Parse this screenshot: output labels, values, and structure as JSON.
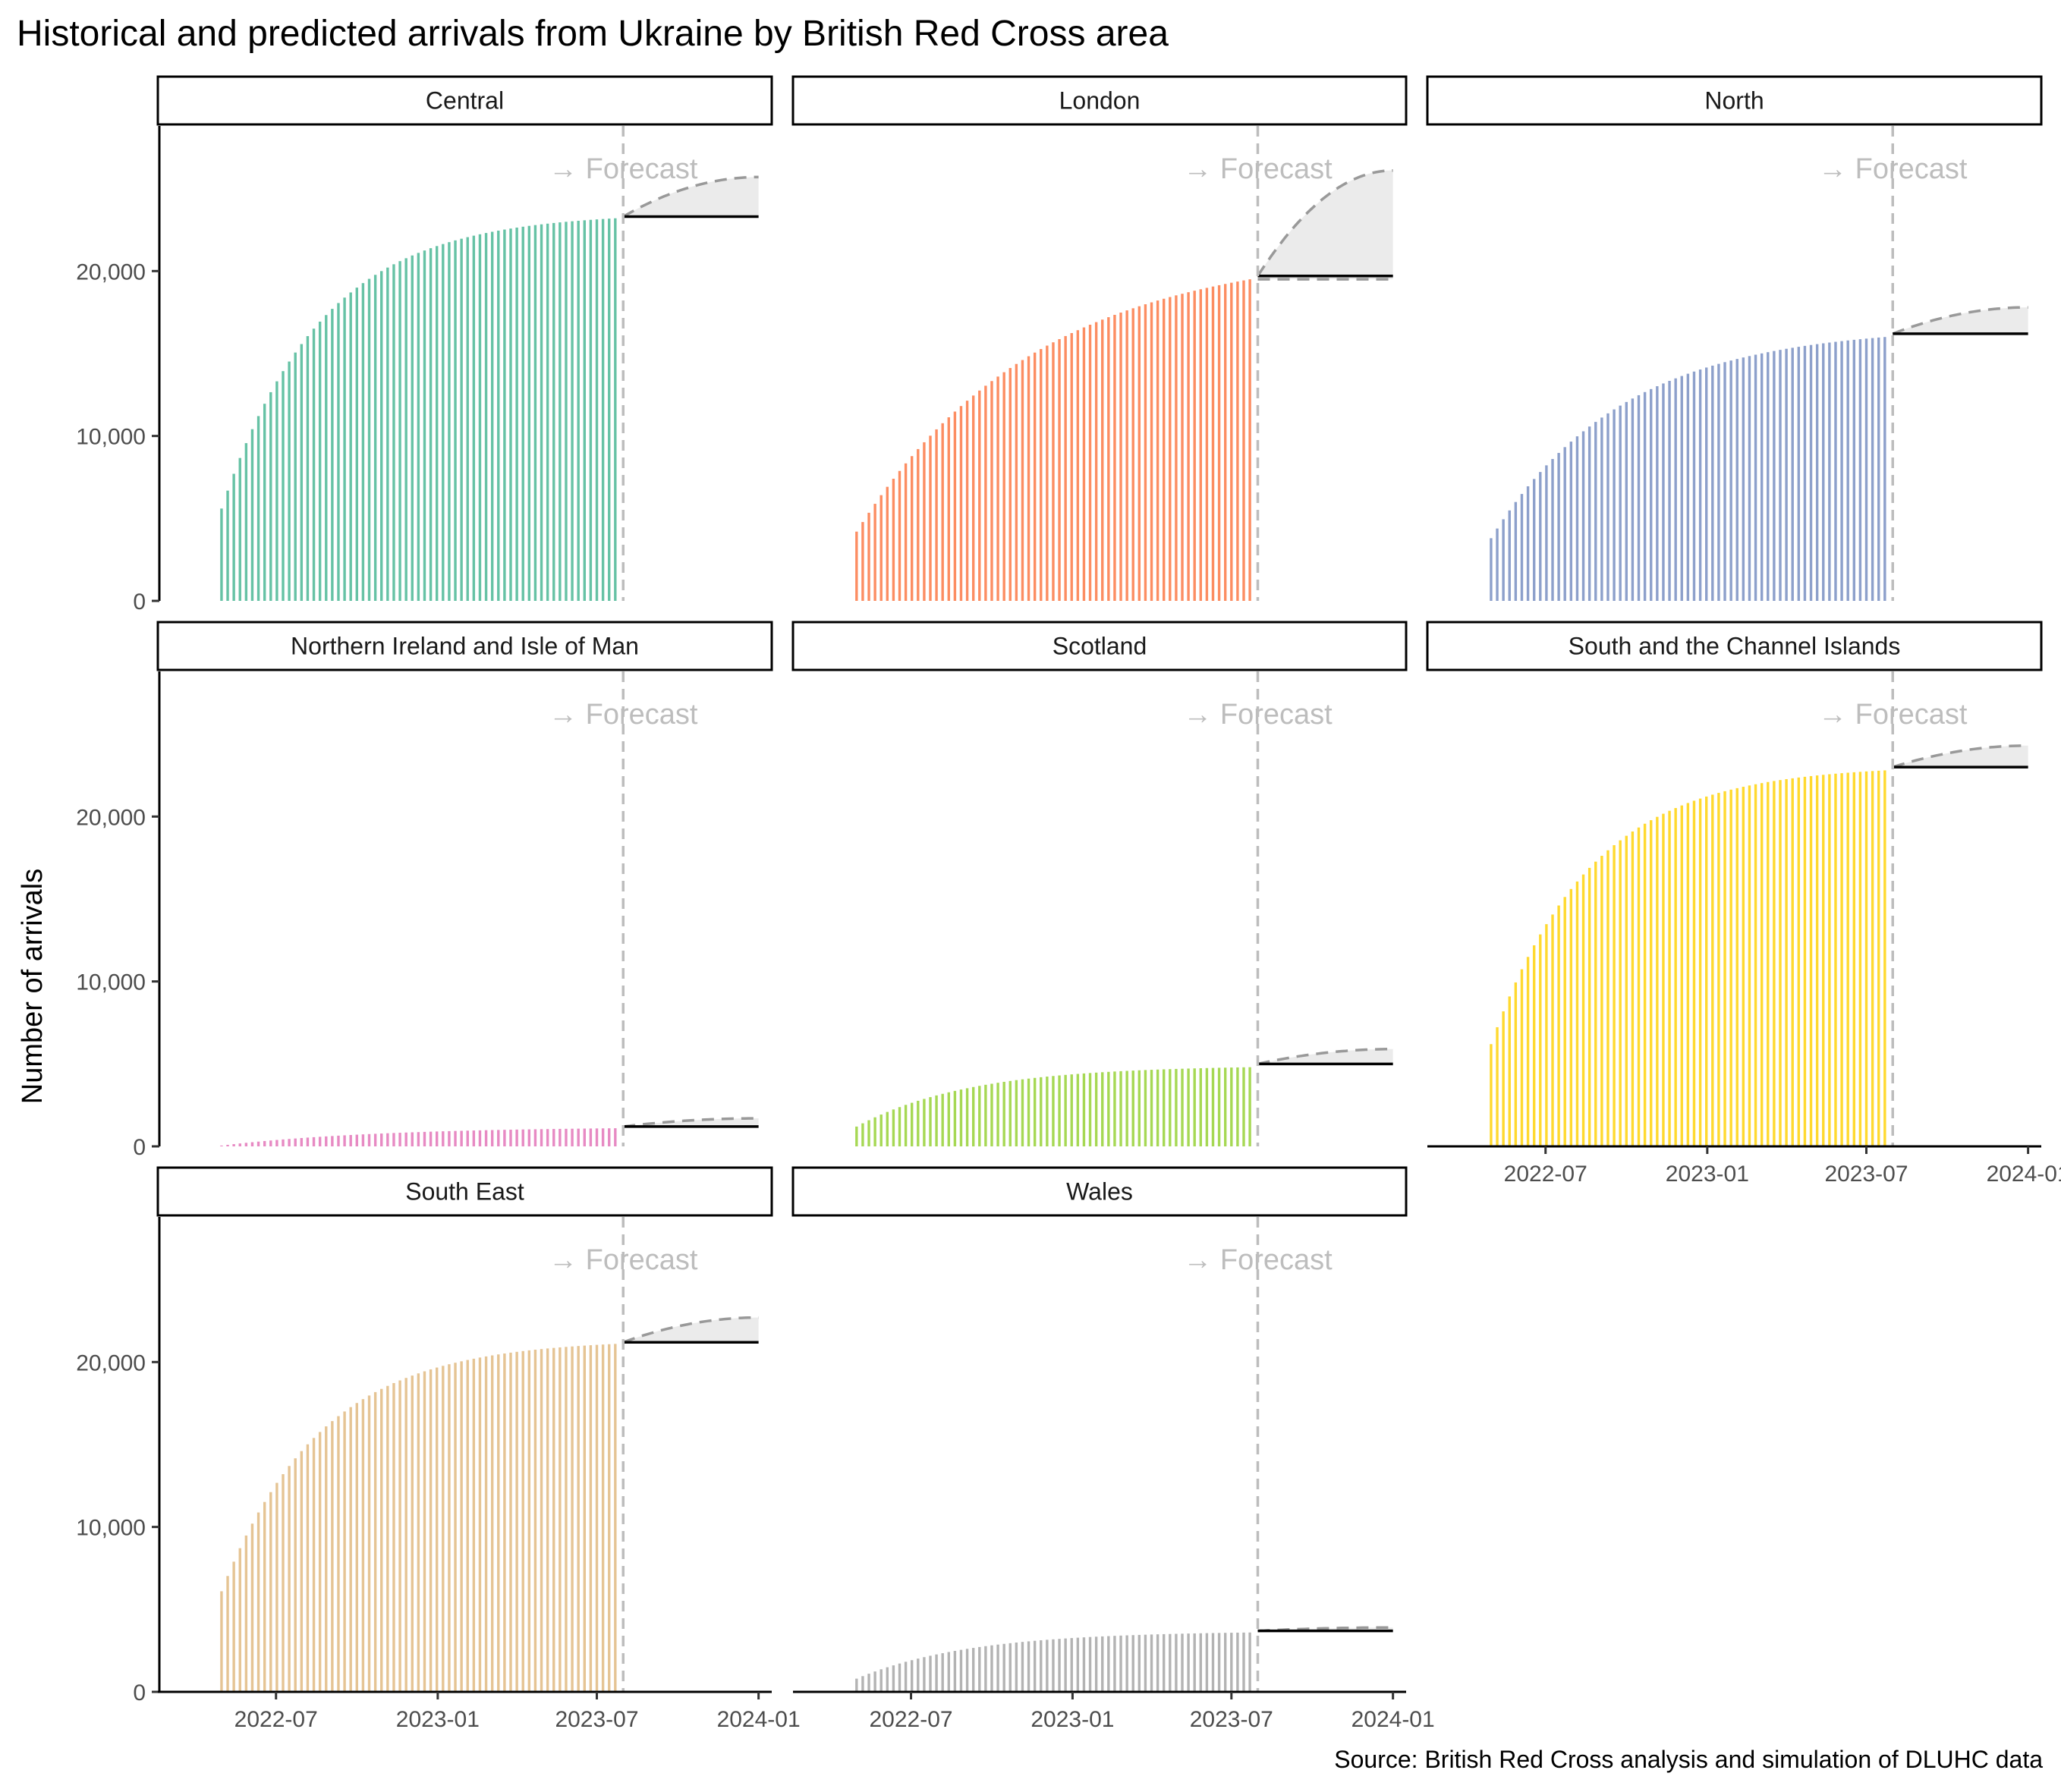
{
  "chart_data": {
    "type": "bar",
    "title": "Historical and predicted arrivals from Ukraine by British Red Cross area",
    "ylabel": "Number of arrivals",
    "xlabel": "",
    "caption": "Source: British Red Cross analysis and simulation of DLUHC data",
    "forecast_label": "→ Forecast",
    "x_range": [
      "2022-02-20",
      "2024-01-16"
    ],
    "x_ticks": [
      "2022-07",
      "2023-01",
      "2023-07",
      "2024-01"
    ],
    "y_range": [
      0,
      28800
    ],
    "y_ticks": [
      0,
      10000,
      20000
    ],
    "y_tick_labels": [
      "0",
      "10,000",
      "20,000"
    ],
    "history_start": "2022-04-30",
    "history_end": "2023-07-24",
    "forecast_start": "2023-07-31",
    "forecast_end": "2024-01-01",
    "grid": false,
    "legend": "none",
    "panels": [
      {
        "name": "Central",
        "color": "#66c2a5",
        "history_start_value": 5600,
        "history_end_value": 23200,
        "curve_k": 4.0,
        "forecast_central": 23300,
        "forecast_low": 23300,
        "forecast_high": 25700
      },
      {
        "name": "London",
        "color": "#fc8d62",
        "history_start_value": 4200,
        "history_end_value": 19500,
        "curve_k": 2.2,
        "forecast_central": 19700,
        "forecast_low": 19500,
        "forecast_high": 26100
      },
      {
        "name": "North",
        "color": "#8da0cb",
        "history_start_value": 3800,
        "history_end_value": 16000,
        "curve_k": 3.0,
        "forecast_central": 16200,
        "forecast_low": 16200,
        "forecast_high": 17800
      },
      {
        "name": "Northern Ireland and Isle of Man",
        "color": "#e78ac3",
        "history_start_value": 50,
        "history_end_value": 1100,
        "curve_k": 2.5,
        "forecast_central": 1200,
        "forecast_low": 1200,
        "forecast_high": 1700
      },
      {
        "name": "Scotland",
        "color": "#a6d854",
        "history_start_value": 1200,
        "history_end_value": 4800,
        "curve_k": 3.5,
        "forecast_central": 5000,
        "forecast_low": 5000,
        "forecast_high": 5900
      },
      {
        "name": "South and the Channel Islands",
        "color": "#ffd92f",
        "history_start_value": 6200,
        "history_end_value": 22800,
        "curve_k": 4.0,
        "forecast_central": 23000,
        "forecast_low": 23000,
        "forecast_high": 24300
      },
      {
        "name": "South East",
        "color": "#e5c494",
        "history_start_value": 6100,
        "history_end_value": 21100,
        "curve_k": 4.0,
        "forecast_central": 21200,
        "forecast_low": 21200,
        "forecast_high": 22700
      },
      {
        "name": "Wales",
        "color": "#b3b3b3",
        "history_start_value": 800,
        "history_end_value": 3600,
        "curve_k": 3.5,
        "forecast_central": 3700,
        "forecast_low": 3700,
        "forecast_high": 3900
      }
    ]
  }
}
